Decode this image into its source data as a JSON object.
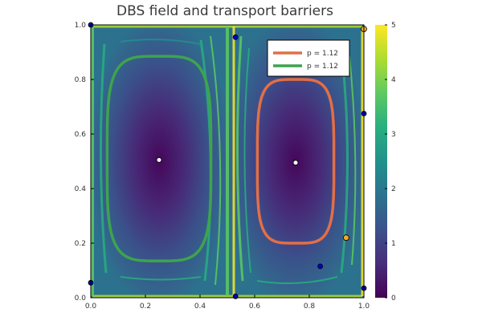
{
  "chart_data": {
    "type": "heatmap",
    "title": "DBS field and transport barriers",
    "xlabel": "",
    "ylabel": "",
    "xlim": [
      0,
      1
    ],
    "ylim": [
      0,
      1
    ],
    "x_ticks": [
      "0.0",
      "0.2",
      "0.4",
      "0.6",
      "0.8",
      "1.0"
    ],
    "y_ticks": [
      "0.0",
      "0.2",
      "0.4",
      "0.6",
      "0.8",
      "1.0"
    ],
    "colorbar": {
      "range": [
        0,
        5
      ],
      "ticks": [
        "0",
        "1",
        "2",
        "3",
        "4",
        "5"
      ],
      "colormap": "viridis"
    },
    "grid": false,
    "legend_position": "top-right",
    "series": [
      {
        "name": "p = 1.12",
        "type": "closed-curve",
        "color": "#e26f46",
        "center": [
          0.75,
          0.5
        ],
        "radius": [
          0.14,
          0.3
        ]
      },
      {
        "name": "p = 1.12",
        "type": "closed-curve",
        "color": "#3da44d",
        "center": [
          0.25,
          0.51
        ],
        "radius": [
          0.19,
          0.375
        ]
      }
    ],
    "points": {
      "center_markers": {
        "color": "#ffffff",
        "xy": [
          [
            0.25,
            0.505
          ],
          [
            0.75,
            0.495
          ]
        ]
      },
      "blue_markers": {
        "color": "#0000cc",
        "xy": [
          [
            0.0,
            1.0
          ],
          [
            0.53,
            0.955
          ],
          [
            1.0,
            0.675
          ],
          [
            0.84,
            0.115
          ],
          [
            0.0,
            0.055
          ],
          [
            1.0,
            0.035
          ],
          [
            0.53,
            0.005
          ]
        ]
      },
      "orange_markers": {
        "color": "#f5a623",
        "xy": [
          [
            1.0,
            0.985
          ],
          [
            0.935,
            0.22
          ]
        ]
      }
    }
  }
}
